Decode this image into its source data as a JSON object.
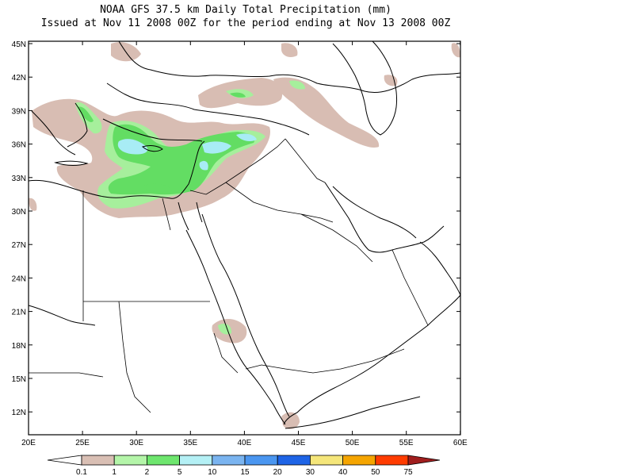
{
  "title": "NOAA GFS 37.5 km Daily Total Precipitation (mm)",
  "subtitle": "Issued at Nov 11 2008 00Z for the period ending at Nov 13 2008 00Z",
  "lat_labels": [
    "45N",
    "42N",
    "39N",
    "36N",
    "33N",
    "30N",
    "27N",
    "24N",
    "21N",
    "18N",
    "15N",
    "12N"
  ],
  "lon_labels": [
    "20E",
    "25E",
    "30E",
    "35E",
    "40E",
    "45E",
    "50E",
    "55E",
    "60E"
  ],
  "colorbar": {
    "labels": [
      "0.1",
      "1",
      "2",
      "5",
      "10",
      "15",
      "20",
      "30",
      "40",
      "50",
      "75"
    ],
    "colors": [
      "#d9bfb4",
      "#b4f5a9",
      "#6ee66e",
      "#b4f0f5",
      "#7ab4f0",
      "#4a96f0",
      "#1e64e6",
      "#f5e67a",
      "#f5a500",
      "#ff3c00",
      "#a01e1e"
    ]
  },
  "precip_colors": {
    "light": "#d8bdb3",
    "green_light": "#a6ef9c",
    "green": "#63dd63",
    "blue": "#a8ecf5",
    "blue_dark": "#6ab8ef"
  }
}
